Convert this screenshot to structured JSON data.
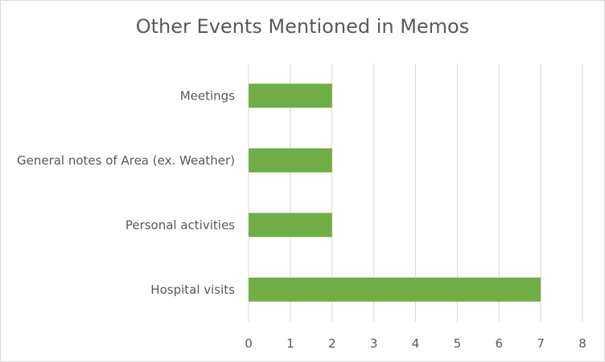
{
  "chart_data": {
    "type": "bar",
    "orientation": "horizontal",
    "title": "Other Events Mentioned in Memos",
    "xlabel": "",
    "ylabel": "",
    "categories": [
      "Meetings",
      "General notes of Area (ex. Weather)",
      "Personal activities",
      "Hospital visits"
    ],
    "values": [
      2,
      2,
      2,
      7
    ],
    "xlim": [
      0,
      8
    ],
    "xticks": [
      "0",
      "1",
      "2",
      "3",
      "4",
      "5",
      "6",
      "7",
      "8"
    ],
    "grid": "vertical",
    "legend": "none",
    "bar_color": "#70ad47",
    "grid_color": "#d9d9d9"
  }
}
